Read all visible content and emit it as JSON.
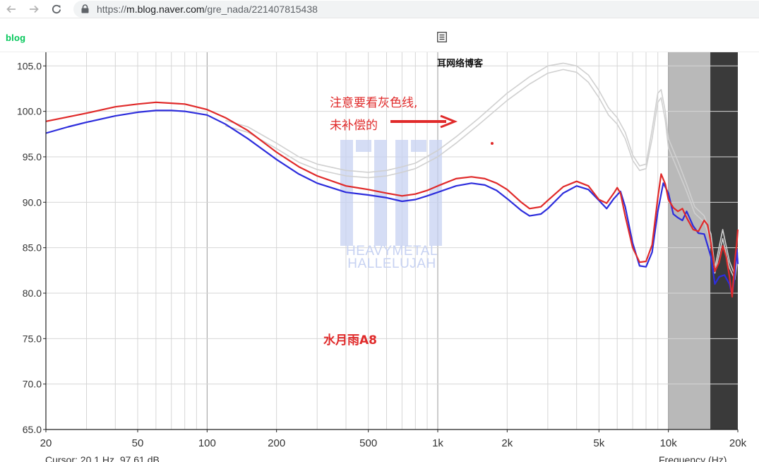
{
  "browser": {
    "url_prefix": "https://",
    "url_host": "m.blog.naver.com",
    "url_path": "/gre_nada/221407815438",
    "icons": [
      "back-arrow-icon",
      "forward-arrow-icon",
      "reload-icon",
      "lock-icon"
    ]
  },
  "blog": {
    "logo": "blog",
    "icon": "post-list-icon"
  },
  "graph": {
    "source_caption": "耳网络博客",
    "note_line1": "注意要看灰色线,",
    "note_line2": "未补偿的",
    "product_label": "水月雨A8",
    "watermark_line1": "HEAVYMETAL",
    "watermark_line2": "HALLELUJAH",
    "cursor_readout": "Cursor: 20.1 Hz, 97.61 dB",
    "x_axis_label": "Frequency (Hz)",
    "colors": {
      "red": "#e02a2a",
      "blue": "#2d2ddc",
      "gray": "#d0d0d0",
      "band_light": "#b9b9b9",
      "band_dark": "#3a3a3a",
      "annotation": "#e02a2a"
    }
  },
  "chart_data": {
    "type": "line",
    "x_scale": "log",
    "xlim": [
      20,
      20000
    ],
    "ylim": [
      65,
      106.5
    ],
    "x_ticks": [
      {
        "value": 20,
        "label": "20"
      },
      {
        "value": 50,
        "label": "50"
      },
      {
        "value": 100,
        "label": "100"
      },
      {
        "value": 200,
        "label": "200"
      },
      {
        "value": 500,
        "label": "500"
      },
      {
        "value": 1000,
        "label": "1k"
      },
      {
        "value": 2000,
        "label": "2k"
      },
      {
        "value": 5000,
        "label": "5k"
      },
      {
        "value": 10000,
        "label": "10k"
      },
      {
        "value": 20000,
        "label": "20k"
      }
    ],
    "y_ticks": [
      {
        "value": 105,
        "label": "105.0"
      },
      {
        "value": 100,
        "label": "100.0"
      },
      {
        "value": 95,
        "label": "95.0"
      },
      {
        "value": 90,
        "label": "90.0"
      },
      {
        "value": 85,
        "label": "85.0"
      },
      {
        "value": 80,
        "label": "80.0"
      },
      {
        "value": 75,
        "label": "75.0"
      },
      {
        "value": 70,
        "label": "70.0"
      },
      {
        "value": 65,
        "label": "65.0"
      }
    ],
    "series": [
      {
        "color": "#e02a2a",
        "points": [
          [
            20,
            98.9
          ],
          [
            25,
            99.4
          ],
          [
            30,
            99.8
          ],
          [
            40,
            100.5
          ],
          [
            50,
            100.8
          ],
          [
            60,
            101.0
          ],
          [
            70,
            100.9
          ],
          [
            80,
            100.8
          ],
          [
            100,
            100.2
          ],
          [
            120,
            99.3
          ],
          [
            150,
            97.9
          ],
          [
            200,
            95.5
          ],
          [
            250,
            93.9
          ],
          [
            300,
            92.9
          ],
          [
            400,
            91.8
          ],
          [
            500,
            91.4
          ],
          [
            600,
            91.0
          ],
          [
            700,
            90.7
          ],
          [
            800,
            90.9
          ],
          [
            900,
            91.3
          ],
          [
            1000,
            91.8
          ],
          [
            1200,
            92.6
          ],
          [
            1400,
            92.8
          ],
          [
            1600,
            92.6
          ],
          [
            1800,
            92.1
          ],
          [
            2000,
            91.4
          ],
          [
            2300,
            90.0
          ],
          [
            2500,
            89.3
          ],
          [
            2800,
            89.5
          ],
          [
            3000,
            90.2
          ],
          [
            3500,
            91.7
          ],
          [
            4000,
            92.3
          ],
          [
            4500,
            91.8
          ],
          [
            5000,
            90.3
          ],
          [
            5400,
            89.9
          ],
          [
            5800,
            91.0
          ],
          [
            6000,
            91.6
          ],
          [
            6200,
            91.0
          ],
          [
            6500,
            88.5
          ],
          [
            7000,
            85.0
          ],
          [
            7500,
            83.4
          ],
          [
            8000,
            83.5
          ],
          [
            8500,
            85.3
          ],
          [
            9000,
            90.5
          ],
          [
            9300,
            93.1
          ],
          [
            9700,
            92.0
          ],
          [
            10000,
            90.3
          ],
          [
            10500,
            89.4
          ],
          [
            11000,
            89.0
          ],
          [
            11500,
            89.3
          ],
          [
            12000,
            88.3
          ],
          [
            12800,
            87.0
          ],
          [
            13500,
            86.8
          ],
          [
            14300,
            88.0
          ],
          [
            14800,
            87.5
          ],
          [
            15300,
            85.5
          ],
          [
            15900,
            82.4
          ],
          [
            16600,
            83.4
          ],
          [
            17200,
            85.2
          ],
          [
            17800,
            84.0
          ],
          [
            18400,
            81.8
          ],
          [
            18900,
            79.6
          ],
          [
            19400,
            83.5
          ],
          [
            19800,
            85.6
          ],
          [
            20000,
            87.0
          ]
        ]
      },
      {
        "color": "#2d2ddc",
        "points": [
          [
            20,
            97.6
          ],
          [
            25,
            98.3
          ],
          [
            30,
            98.8
          ],
          [
            40,
            99.5
          ],
          [
            50,
            99.9
          ],
          [
            60,
            100.1
          ],
          [
            70,
            100.1
          ],
          [
            80,
            100.0
          ],
          [
            100,
            99.6
          ],
          [
            120,
            98.6
          ],
          [
            150,
            97.0
          ],
          [
            200,
            94.7
          ],
          [
            250,
            93.1
          ],
          [
            300,
            92.1
          ],
          [
            400,
            91.1
          ],
          [
            500,
            90.8
          ],
          [
            600,
            90.5
          ],
          [
            700,
            90.1
          ],
          [
            800,
            90.3
          ],
          [
            900,
            90.7
          ],
          [
            1000,
            91.1
          ],
          [
            1200,
            91.8
          ],
          [
            1400,
            92.1
          ],
          [
            1600,
            91.9
          ],
          [
            1800,
            91.3
          ],
          [
            2000,
            90.4
          ],
          [
            2300,
            89.1
          ],
          [
            2500,
            88.5
          ],
          [
            2800,
            88.7
          ],
          [
            3000,
            89.3
          ],
          [
            3500,
            91.0
          ],
          [
            4000,
            91.8
          ],
          [
            4500,
            91.4
          ],
          [
            5000,
            90.2
          ],
          [
            5400,
            89.3
          ],
          [
            5800,
            90.4
          ],
          [
            6200,
            91.2
          ],
          [
            6500,
            89.5
          ],
          [
            7000,
            85.5
          ],
          [
            7500,
            83.0
          ],
          [
            8000,
            82.9
          ],
          [
            8500,
            84.5
          ],
          [
            9000,
            89.0
          ],
          [
            9500,
            92.1
          ],
          [
            10000,
            91.0
          ],
          [
            10500,
            88.7
          ],
          [
            11000,
            88.3
          ],
          [
            11500,
            88.0
          ],
          [
            12000,
            89.0
          ],
          [
            12800,
            87.4
          ],
          [
            13500,
            86.6
          ],
          [
            14300,
            86.5
          ],
          [
            15300,
            84.0
          ],
          [
            15900,
            81.0
          ],
          [
            16600,
            81.8
          ],
          [
            17500,
            82.0
          ],
          [
            18400,
            81.0
          ],
          [
            18900,
            79.8
          ],
          [
            19400,
            82.0
          ],
          [
            19800,
            84.8
          ],
          [
            20000,
            83.2
          ]
        ]
      },
      {
        "color": "#d0d0d0",
        "points": [
          [
            120,
            99.0
          ],
          [
            150,
            98.3
          ],
          [
            200,
            96.5
          ],
          [
            250,
            95.0
          ],
          [
            300,
            94.2
          ],
          [
            400,
            93.5
          ],
          [
            500,
            93.3
          ],
          [
            600,
            93.5
          ],
          [
            700,
            93.9
          ],
          [
            800,
            94.3
          ],
          [
            1000,
            95.7
          ],
          [
            1200,
            97.2
          ],
          [
            1500,
            99.2
          ],
          [
            2000,
            102.0
          ],
          [
            2500,
            103.8
          ],
          [
            3000,
            105.0
          ],
          [
            3500,
            105.3
          ],
          [
            4000,
            105.0
          ],
          [
            4500,
            104.0
          ],
          [
            5000,
            102.3
          ],
          [
            5500,
            100.4
          ],
          [
            6000,
            99.3
          ],
          [
            6500,
            97.7
          ],
          [
            7000,
            95.2
          ],
          [
            7500,
            94.0
          ],
          [
            8000,
            94.2
          ],
          [
            8500,
            98.0
          ],
          [
            9000,
            102.0
          ],
          [
            9300,
            102.4
          ],
          [
            9700,
            100.0
          ],
          [
            10000,
            97.0
          ],
          [
            11000,
            94.5
          ],
          [
            12000,
            92.0
          ],
          [
            13000,
            89.5
          ],
          [
            14300,
            88.5
          ],
          [
            15300,
            86.5
          ],
          [
            15900,
            82.8
          ],
          [
            17200,
            87.0
          ],
          [
            18400,
            83.5
          ],
          [
            19400,
            82.0
          ],
          [
            20000,
            84.5
          ]
        ]
      },
      {
        "color": "#d0d0d0",
        "points": [
          [
            120,
            98.4
          ],
          [
            150,
            97.7
          ],
          [
            200,
            95.9
          ],
          [
            250,
            94.4
          ],
          [
            300,
            93.6
          ],
          [
            400,
            92.9
          ],
          [
            500,
            92.7
          ],
          [
            600,
            92.9
          ],
          [
            700,
            93.3
          ],
          [
            800,
            93.7
          ],
          [
            1000,
            95.0
          ],
          [
            1200,
            96.5
          ],
          [
            1500,
            98.5
          ],
          [
            2000,
            101.2
          ],
          [
            2500,
            103.0
          ],
          [
            3000,
            104.2
          ],
          [
            3500,
            104.6
          ],
          [
            4000,
            104.3
          ],
          [
            4500,
            103.2
          ],
          [
            5000,
            101.5
          ],
          [
            5500,
            99.6
          ],
          [
            6000,
            98.6
          ],
          [
            6500,
            97.0
          ],
          [
            7000,
            94.6
          ],
          [
            7500,
            93.5
          ],
          [
            8000,
            93.7
          ],
          [
            8500,
            97.0
          ],
          [
            9000,
            101.0
          ],
          [
            9300,
            101.5
          ],
          [
            9700,
            99.0
          ],
          [
            10000,
            96.0
          ],
          [
            11000,
            93.5
          ],
          [
            12000,
            91.2
          ],
          [
            13000,
            88.8
          ],
          [
            14300,
            87.8
          ],
          [
            15300,
            85.8
          ],
          [
            15900,
            82.2
          ],
          [
            17200,
            86.0
          ],
          [
            18400,
            82.8
          ],
          [
            19400,
            81.5
          ],
          [
            20000,
            83.8
          ]
        ]
      }
    ],
    "bands": [
      {
        "from": 10000,
        "to": 15200,
        "color": "#b9b9b9"
      },
      {
        "from": 15200,
        "to": 20000,
        "color": "#3a3a3a"
      }
    ]
  }
}
